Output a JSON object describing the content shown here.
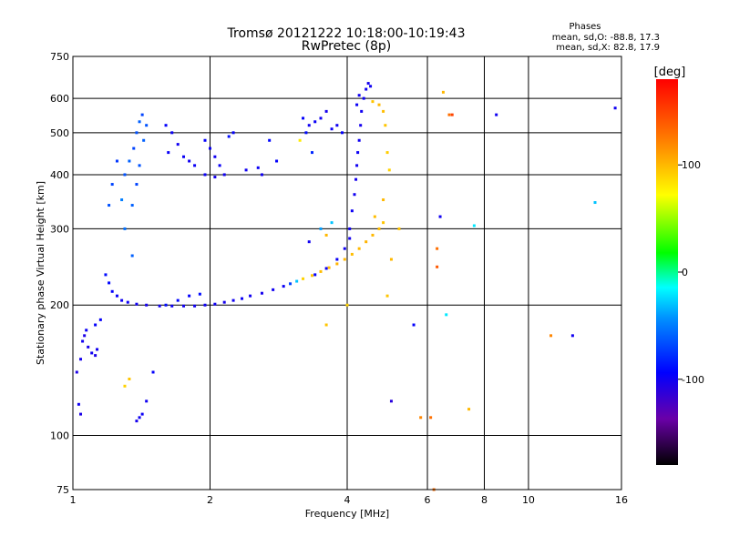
{
  "chart_data": {
    "type": "scatter",
    "title": "Tromsø 20121222 10:18:00-10:19:43",
    "subtitle": "RwPretec (8p)",
    "xlabel": "Frequency [MHz]",
    "ylabel": "Stationary phase Virtual Height [km]",
    "x_scale": "log",
    "y_scale": "log",
    "xlim": [
      1,
      16
    ],
    "ylim": [
      75,
      750
    ],
    "x_ticks": [
      1,
      2,
      4,
      6,
      8,
      10,
      16
    ],
    "x_tick_labels": [
      "1",
      "2",
      "4",
      "6",
      "8",
      "10",
      "16"
    ],
    "y_ticks": [
      75,
      100,
      200,
      300,
      400,
      500,
      600,
      750
    ],
    "y_tick_labels": [
      "75",
      "100",
      "200",
      "300",
      "400",
      "500",
      "600",
      "750"
    ],
    "grid": true,
    "legend_title": "Phases",
    "legend_lines": [
      "mean, sd,O: -88.8, 17.3",
      "mean, sd,X: 82.8, 17.9"
    ],
    "colorbar": {
      "label": "[deg]",
      "range": [
        -180,
        180
      ],
      "ticks": [
        100,
        0,
        -100
      ],
      "tick_labels": [
        "100",
        "0",
        "-100"
      ]
    },
    "series": [
      {
        "points": [
          [
            1.02,
            140,
            -105
          ],
          [
            1.04,
            150,
            -102
          ],
          [
            1.05,
            165,
            -100
          ],
          [
            1.06,
            170,
            -105
          ],
          [
            1.08,
            160,
            -103
          ],
          [
            1.1,
            155,
            -100
          ],
          [
            1.12,
            153,
            -104
          ],
          [
            1.13,
            158,
            -101
          ],
          [
            1.07,
            175,
            -98
          ],
          [
            1.03,
            118,
            -100
          ],
          [
            1.04,
            112,
            -105
          ],
          [
            1.12,
            180,
            -95
          ],
          [
            1.15,
            185,
            -96
          ],
          [
            1.18,
            235,
            -90
          ],
          [
            1.2,
            225,
            -92
          ],
          [
            1.22,
            215,
            -95
          ],
          [
            1.25,
            210,
            -97
          ],
          [
            1.28,
            205,
            -100
          ],
          [
            1.32,
            203,
            -98
          ],
          [
            1.38,
            201,
            -100
          ],
          [
            1.45,
            200,
            -102
          ],
          [
            1.55,
            199,
            -100
          ],
          [
            1.65,
            199,
            -99
          ],
          [
            1.75,
            199,
            -101
          ],
          [
            1.85,
            199,
            -100
          ],
          [
            1.95,
            200,
            -99
          ],
          [
            2.05,
            201,
            -100
          ],
          [
            2.15,
            203,
            -102
          ],
          [
            2.25,
            205,
            -100
          ],
          [
            2.35,
            207,
            -98
          ],
          [
            2.45,
            210,
            -100
          ],
          [
            2.6,
            213,
            -102
          ],
          [
            2.75,
            217,
            -100
          ],
          [
            2.9,
            221,
            -98
          ],
          [
            3.0,
            224,
            -70
          ],
          [
            3.1,
            227,
            -30
          ],
          [
            3.2,
            230,
            90
          ],
          [
            3.35,
            234,
            95
          ],
          [
            3.5,
            239,
            98
          ],
          [
            3.65,
            244,
            100
          ],
          [
            3.8,
            249,
            102
          ],
          [
            3.95,
            255,
            100
          ],
          [
            4.1,
            262,
            98
          ],
          [
            4.25,
            270,
            100
          ],
          [
            4.4,
            280,
            102
          ],
          [
            4.55,
            290,
            100
          ],
          [
            4.7,
            300,
            98
          ],
          [
            4.8,
            310,
            95
          ],
          [
            3.4,
            235,
            -95
          ],
          [
            3.6,
            243,
            -100
          ],
          [
            3.8,
            255,
            -98
          ],
          [
            3.95,
            270,
            -100
          ],
          [
            4.05,
            285,
            -102
          ],
          [
            4.05,
            300,
            -100
          ],
          [
            4.1,
            330,
            -98
          ],
          [
            4.15,
            360,
            -100
          ],
          [
            4.18,
            390,
            -102
          ],
          [
            4.2,
            420,
            -100
          ],
          [
            4.22,
            450,
            -98
          ],
          [
            4.25,
            480,
            -100
          ],
          [
            4.28,
            520,
            -102
          ],
          [
            4.3,
            560,
            -100
          ],
          [
            4.35,
            600,
            -98
          ],
          [
            4.4,
            630,
            -100
          ],
          [
            4.45,
            650,
            -102
          ],
          [
            4.5,
            640,
            -100
          ],
          [
            4.25,
            610,
            -100
          ],
          [
            4.2,
            580,
            -98
          ],
          [
            4.55,
            590,
            95
          ],
          [
            4.7,
            580,
            100
          ],
          [
            4.8,
            560,
            98
          ],
          [
            4.85,
            520,
            95
          ],
          [
            4.9,
            450,
            92
          ],
          [
            4.95,
            410,
            90
          ],
          [
            4.8,
            350,
            100
          ],
          [
            4.6,
            320,
            98
          ],
          [
            1.35,
            260,
            -60
          ],
          [
            1.3,
            300,
            -55
          ],
          [
            1.28,
            350,
            -50
          ],
          [
            1.3,
            400,
            -65
          ],
          [
            1.33,
            430,
            -60
          ],
          [
            1.36,
            460,
            -70
          ],
          [
            1.38,
            500,
            -65
          ],
          [
            1.4,
            530,
            -60
          ],
          [
            1.42,
            550,
            -70
          ],
          [
            1.45,
            520,
            -65
          ],
          [
            1.43,
            480,
            -60
          ],
          [
            1.4,
            420,
            -65
          ],
          [
            1.38,
            380,
            -70
          ],
          [
            1.35,
            340,
            -60
          ],
          [
            1.25,
            430,
            -75
          ],
          [
            1.22,
            380,
            -70
          ],
          [
            1.2,
            340,
            -65
          ],
          [
            1.6,
            520,
            -95
          ],
          [
            1.65,
            500,
            -98
          ],
          [
            1.7,
            470,
            -100
          ],
          [
            1.62,
            450,
            -97
          ],
          [
            1.75,
            440,
            -98
          ],
          [
            1.8,
            430,
            -100
          ],
          [
            1.85,
            420,
            -98
          ],
          [
            1.95,
            480,
            -95
          ],
          [
            2.0,
            460,
            -98
          ],
          [
            2.05,
            440,
            -100
          ],
          [
            2.1,
            420,
            -97
          ],
          [
            2.15,
            400,
            -100
          ],
          [
            1.95,
            400,
            -98
          ],
          [
            2.05,
            395,
            -102
          ],
          [
            2.2,
            490,
            -90
          ],
          [
            2.25,
            500,
            -95
          ],
          [
            2.4,
            410,
            -100
          ],
          [
            2.55,
            415,
            -98
          ],
          [
            2.6,
            400,
            -100
          ],
          [
            2.8,
            430,
            -95
          ],
          [
            2.7,
            480,
            -92
          ],
          [
            3.3,
            520,
            -100
          ],
          [
            3.4,
            530,
            -98
          ],
          [
            3.5,
            540,
            -100
          ],
          [
            3.6,
            560,
            -102
          ],
          [
            3.2,
            540,
            -95
          ],
          [
            3.25,
            500,
            -90
          ],
          [
            3.35,
            450,
            -80
          ],
          [
            3.15,
            480,
            80
          ],
          [
            3.8,
            520,
            -100
          ],
          [
            3.7,
            510,
            -98
          ],
          [
            3.9,
            500,
            -95
          ],
          [
            1.4,
            110,
            -100
          ],
          [
            1.38,
            108,
            -102
          ],
          [
            1.42,
            112,
            -98
          ],
          [
            1.45,
            120,
            -100
          ],
          [
            1.3,
            130,
            90
          ],
          [
            1.33,
            135,
            95
          ],
          [
            1.5,
            140,
            -95
          ],
          [
            1.6,
            200,
            -90
          ],
          [
            1.7,
            205,
            -92
          ],
          [
            1.8,
            210,
            -95
          ],
          [
            1.9,
            212,
            -90
          ],
          [
            3.5,
            300,
            -40
          ],
          [
            3.6,
            290,
            100
          ],
          [
            3.7,
            310,
            -30
          ],
          [
            3.3,
            280,
            -100
          ],
          [
            3.6,
            180,
            95
          ],
          [
            4.0,
            200,
            90
          ],
          [
            4.9,
            210,
            95
          ],
          [
            5.0,
            255,
            100
          ],
          [
            5.2,
            300,
            95
          ],
          [
            5.6,
            180,
            -95
          ],
          [
            5.8,
            110,
            120
          ],
          [
            6.1,
            110,
            130
          ],
          [
            6.3,
            245,
            140
          ],
          [
            6.3,
            270,
            130
          ],
          [
            6.4,
            320,
            -100
          ],
          [
            6.5,
            620,
            100
          ],
          [
            6.6,
            190,
            -20
          ],
          [
            6.7,
            550,
            130
          ],
          [
            6.8,
            550,
            150
          ],
          [
            7.4,
            115,
            100
          ],
          [
            7.6,
            305,
            -20
          ],
          [
            8.5,
            550,
            -100
          ],
          [
            11.2,
            170,
            120
          ],
          [
            12.5,
            170,
            -100
          ],
          [
            14.0,
            345,
            -30
          ],
          [
            15.5,
            570,
            -100
          ],
          [
            5.0,
            120,
            -110
          ],
          [
            6.2,
            75,
            130
          ]
        ]
      }
    ]
  }
}
